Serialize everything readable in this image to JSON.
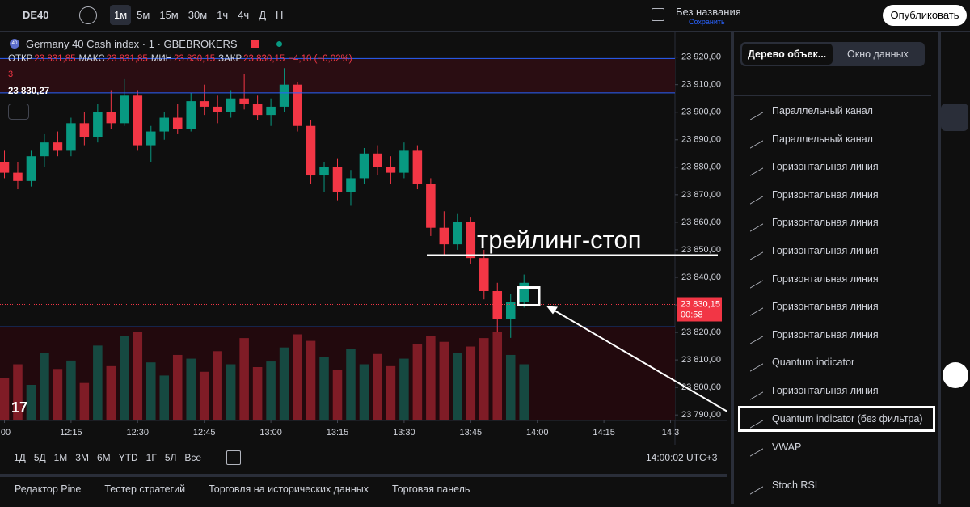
{
  "toolbar": {
    "symbol": "DE40",
    "intervals": [
      "1м",
      "5м",
      "15м",
      "30м",
      "1ч",
      "4ч",
      "Д",
      "Н"
    ],
    "layout_name": "Без названия",
    "save_state": "Сохранить",
    "publish": "Опубликовать"
  },
  "legend": {
    "title": "Germany 40 Cash index · 1 · GBEBROKERS",
    "fields": [
      {
        "name": "ОТКР",
        "value": "23 831,85"
      },
      {
        "name": "МАКС",
        "value": "23 831,85"
      },
      {
        "name": "МИН",
        "value": "23 830,15"
      },
      {
        "name": "ЗАКР",
        "value": "23 830,15"
      }
    ],
    "change": "−4,10 (−0,02%)",
    "count": "3",
    "crosshair_price": "23 830,27"
  },
  "chart_data": {
    "type": "candlestick",
    "xlim": [
      -1,
      151
    ],
    "xticks": [
      {
        "value": 0,
        "label": ":00"
      },
      {
        "value": 15,
        "label": "12:15"
      },
      {
        "value": 30,
        "label": "12:30"
      },
      {
        "value": 45,
        "label": "12:45"
      },
      {
        "value": 60,
        "label": "13:00"
      },
      {
        "value": 75,
        "label": "13:15"
      },
      {
        "value": 90,
        "label": "13:30"
      },
      {
        "value": 105,
        "label": "13:45"
      },
      {
        "value": 120,
        "label": "14:00"
      },
      {
        "value": 135,
        "label": "14:15"
      },
      {
        "value": 150,
        "label": "14:3"
      }
    ],
    "ylim": [
      23788,
      23929
    ],
    "yticks": [
      {
        "value": 23920,
        "label": "23 920,00"
      },
      {
        "value": 23910,
        "label": "23 910,00"
      },
      {
        "value": 23900,
        "label": "23 900,00"
      },
      {
        "value": 23890,
        "label": "23 890,00"
      },
      {
        "value": 23880,
        "label": "23 880,00"
      },
      {
        "value": 23870,
        "label": "23 870,00"
      },
      {
        "value": 23860,
        "label": "23 860,00"
      },
      {
        "value": 23850,
        "label": "23 850,00"
      },
      {
        "value": 23840,
        "label": "23 840,00"
      },
      {
        "value": 23830,
        "label": "23 830,00"
      },
      {
        "value": 23820,
        "label": "23 820,00"
      },
      {
        "value": 23810,
        "label": "23 810,00"
      },
      {
        "value": 23800,
        "label": "23 800,00"
      },
      {
        "value": 23790,
        "label": "23 790,00"
      }
    ],
    "x": [
      0,
      3,
      6,
      9,
      12,
      15,
      18,
      21,
      24,
      27,
      30,
      33,
      36,
      39,
      42,
      45,
      48,
      51,
      54,
      57,
      60,
      63,
      66,
      69,
      72,
      75,
      78,
      81,
      84,
      87,
      90,
      93,
      96,
      99,
      102,
      105,
      108,
      111,
      114,
      117
    ],
    "open": [
      23882,
      23878,
      23875,
      23884,
      23889,
      23886,
      23896,
      23891,
      23900,
      23896,
      23906,
      23888,
      23893,
      23898,
      23894,
      23904,
      23902,
      23900,
      23905,
      23903,
      23899,
      23902,
      23910,
      23895,
      23877,
      23880,
      23871,
      23876,
      23885,
      23880,
      23878,
      23886,
      23874,
      23858,
      23852,
      23860,
      23847,
      23835,
      23825,
      23831
    ],
    "high": [
      23886,
      23882,
      23886,
      23892,
      23893,
      23898,
      23900,
      23903,
      23908,
      23912,
      23908,
      23895,
      23900,
      23903,
      23907,
      23910,
      23906,
      23908,
      23914,
      23906,
      23905,
      23916,
      23911,
      23897,
      23882,
      23883,
      23879,
      23887,
      23888,
      23884,
      23889,
      23888,
      23876,
      23864,
      23863,
      23862,
      23850,
      23838,
      23834,
      23841
    ],
    "low": [
      23876,
      23872,
      23873,
      23880,
      23884,
      23884,
      23888,
      23889,
      23894,
      23895,
      23886,
      23882,
      23890,
      23892,
      23893,
      23899,
      23896,
      23898,
      23901,
      23897,
      23895,
      23900,
      23893,
      23874,
      23871,
      23868,
      23866,
      23874,
      23877,
      23874,
      23876,
      23872,
      23855,
      23848,
      23850,
      23845,
      23832,
      23820,
      23818,
      23829
    ],
    "close": [
      23878,
      23875,
      23884,
      23889,
      23886,
      23896,
      23891,
      23900,
      23896,
      23906,
      23888,
      23893,
      23898,
      23894,
      23904,
      23902,
      23900,
      23905,
      23903,
      23899,
      23902,
      23910,
      23895,
      23877,
      23880,
      23871,
      23876,
      23885,
      23880,
      23878,
      23886,
      23874,
      23858,
      23852,
      23860,
      23847,
      23835,
      23825,
      23831,
      23838
    ],
    "volume": [
      45,
      60,
      38,
      72,
      55,
      64,
      40,
      80,
      58,
      90,
      95,
      62,
      48,
      70,
      66,
      52,
      74,
      60,
      88,
      57,
      63,
      78,
      92,
      85,
      68,
      54,
      76,
      60,
      71,
      58,
      66,
      82,
      90,
      84,
      72,
      79,
      88,
      95,
      70,
      60
    ],
    "up_color": "#089981",
    "down_color": "#f23645",
    "levels": [
      {
        "value": 23919.5,
        "color": "#2962ff"
      },
      {
        "value": 23907,
        "color": "#2962ff"
      },
      {
        "value": 23822,
        "color": "#2962ff"
      }
    ],
    "trailing_stop": {
      "value": 23848,
      "label": "трейлинг-стоп"
    },
    "last_price": {
      "value": 23830.15,
      "label": "23 830,15"
    },
    "countdown": "00:58"
  },
  "bottom_bar": {
    "ranges": [
      "1Д",
      "5Д",
      "1М",
      "3М",
      "6М",
      "YTD",
      "1Г",
      "5Л",
      "Все"
    ],
    "clock": "14:00:02 UTC+3"
  },
  "bottom_tabs": [
    "Редактор Pine",
    "Тестер стратегий",
    "Торговля на исторических данных",
    "Торговая панель"
  ],
  "right_panel": {
    "tabs": [
      "Дерево объек...",
      "Окно данных"
    ],
    "items": [
      "Параллельный канал",
      "Параллельный канал",
      "Горизонтальная линия",
      "Горизонтальная линия",
      "Горизонтальная линия",
      "Горизонтальная линия",
      "Горизонтальная линия",
      "Горизонтальная линия",
      "Горизонтальная линия",
      "Quantum indicator",
      "Горизонтальная линия",
      "Quantum indicator (без фильтра)",
      "VWAP",
      "Stoch RSI"
    ]
  }
}
